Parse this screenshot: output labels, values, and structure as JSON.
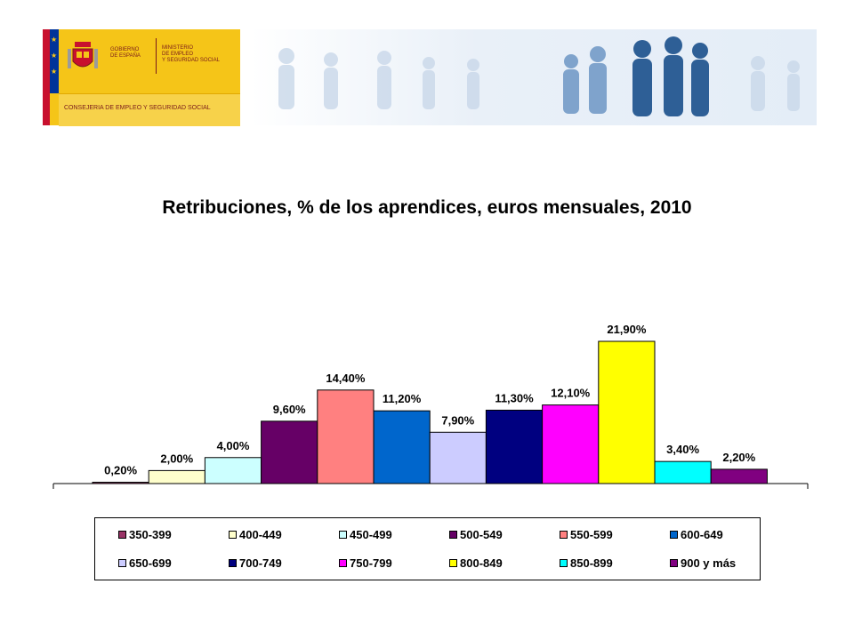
{
  "header": {
    "gobierno": "GOBIERNO\nDE ESPAÑA",
    "ministerio": "MINISTERIO\nDE EMPLEO\nY SEGURIDAD SOCIAL",
    "consejeria": "CONSEJERIA DE EMPLEO Y SEGURIDAD SOCIAL"
  },
  "chart_data": {
    "type": "bar",
    "title": "Retribuciones, % de los aprendices, euros mensuales, 2010",
    "xlabel": "",
    "ylabel": "",
    "ylim": [
      0,
      25
    ],
    "grid": false,
    "legend_position": "bottom",
    "categories": [
      "350-399",
      "400-449",
      "450-499",
      "500-549",
      "550-599",
      "600-649",
      "650-699",
      "700-749",
      "750-799",
      "800-849",
      "850-899",
      "900 y más"
    ],
    "values": [
      0.2,
      2.0,
      4.0,
      9.6,
      14.4,
      11.2,
      7.9,
      11.3,
      12.1,
      21.9,
      3.4,
      2.2
    ],
    "labels": [
      "0,20%",
      "2,00%",
      "4,00%",
      "9,60%",
      "14,40%",
      "11,20%",
      "7,90%",
      "11,30%",
      "12,10%",
      "21,90%",
      "3,40%",
      "2,20%"
    ],
    "colors": [
      "#993366",
      "#ffffcc",
      "#ccffff",
      "#660066",
      "#ff8080",
      "#0066cc",
      "#ccccff",
      "#000080",
      "#ff00ff",
      "#ffff00",
      "#00ffff",
      "#800080"
    ]
  }
}
